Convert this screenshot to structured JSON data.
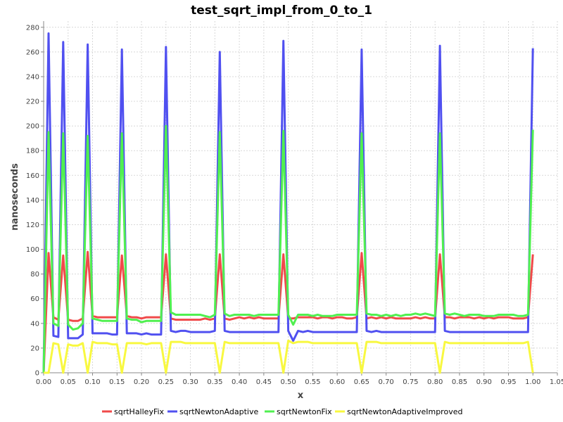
{
  "chart_data": {
    "type": "line",
    "title": "test_sqrt_impl_from_0_to_1",
    "xlabel": "x",
    "ylabel": "nanoseconds",
    "xlim": [
      0,
      1.05
    ],
    "ylim": [
      0,
      285
    ],
    "xticks": [
      "0.00",
      "0.05",
      "0.10",
      "0.15",
      "0.20",
      "0.25",
      "0.30",
      "0.35",
      "0.40",
      "0.45",
      "0.50",
      "0.55",
      "0.60",
      "0.65",
      "0.70",
      "0.75",
      "0.80",
      "0.85",
      "0.90",
      "0.95",
      "1.00",
      "1.05"
    ],
    "yticks": [
      "0",
      "20",
      "40",
      "60",
      "80",
      "100",
      "120",
      "140",
      "160",
      "180",
      "200",
      "220",
      "240",
      "260",
      "280"
    ],
    "grid": true,
    "legend_position": "bottom",
    "x": [
      0.0,
      0.01,
      0.02,
      0.03,
      0.04,
      0.05,
      0.06,
      0.07,
      0.08,
      0.09,
      0.1,
      0.11,
      0.12,
      0.13,
      0.14,
      0.15,
      0.16,
      0.17,
      0.18,
      0.19,
      0.2,
      0.21,
      0.22,
      0.23,
      0.24,
      0.25,
      0.26,
      0.27,
      0.28,
      0.29,
      0.3,
      0.31,
      0.32,
      0.33,
      0.34,
      0.35,
      0.36,
      0.37,
      0.38,
      0.39,
      0.4,
      0.41,
      0.42,
      0.43,
      0.44,
      0.45,
      0.46,
      0.47,
      0.48,
      0.49,
      0.5,
      0.51,
      0.52,
      0.53,
      0.54,
      0.55,
      0.56,
      0.57,
      0.58,
      0.59,
      0.6,
      0.61,
      0.62,
      0.63,
      0.64,
      0.65,
      0.66,
      0.67,
      0.68,
      0.69,
      0.7,
      0.71,
      0.72,
      0.73,
      0.74,
      0.75,
      0.76,
      0.77,
      0.78,
      0.79,
      0.8,
      0.81,
      0.82,
      0.83,
      0.84,
      0.85,
      0.86,
      0.87,
      0.88,
      0.89,
      0.9,
      0.91,
      0.92,
      0.93,
      0.94,
      0.95,
      0.96,
      0.97,
      0.98,
      0.99,
      1.0
    ],
    "series": [
      {
        "name": "sqrtHalleyFix",
        "color": "#f04a4a",
        "values": [
          0,
          97,
          45,
          43,
          95,
          43,
          42,
          42,
          44,
          98,
          46,
          45,
          45,
          45,
          45,
          45,
          95,
          46,
          45,
          45,
          44,
          45,
          45,
          45,
          45,
          96,
          44,
          43,
          43,
          43,
          43,
          43,
          43,
          44,
          43,
          44,
          96,
          44,
          43,
          44,
          45,
          44,
          45,
          44,
          45,
          44,
          44,
          44,
          44,
          96,
          44,
          44,
          45,
          45,
          45,
          45,
          44,
          45,
          45,
          44,
          45,
          45,
          44,
          44,
          45,
          97,
          44,
          45,
          44,
          45,
          44,
          45,
          44,
          44,
          44,
          44,
          45,
          44,
          45,
          44,
          44,
          96,
          45,
          45,
          44,
          45,
          45,
          45,
          44,
          45,
          44,
          45,
          44,
          45,
          45,
          45,
          44,
          44,
          44,
          45,
          96
        ]
      },
      {
        "name": "sqrtNewtonAdaptive",
        "color": "#5050f0",
        "values": [
          0,
          275,
          30,
          29,
          268,
          28,
          28,
          28,
          31,
          266,
          32,
          32,
          32,
          32,
          31,
          31,
          262,
          32,
          32,
          32,
          31,
          32,
          31,
          31,
          31,
          264,
          34,
          33,
          34,
          34,
          33,
          33,
          33,
          33,
          33,
          34,
          260,
          34,
          33,
          33,
          33,
          33,
          33,
          33,
          33,
          33,
          33,
          33,
          33,
          269,
          34,
          26,
          34,
          33,
          34,
          33,
          33,
          33,
          33,
          33,
          33,
          33,
          33,
          33,
          33,
          262,
          34,
          33,
          34,
          33,
          33,
          33,
          33,
          33,
          33,
          33,
          33,
          33,
          33,
          33,
          33,
          265,
          34,
          33,
          33,
          33,
          33,
          33,
          33,
          33,
          33,
          33,
          33,
          33,
          33,
          33,
          33,
          33,
          33,
          33,
          263
        ]
      },
      {
        "name": "sqrtNewtonFix",
        "color": "#50f050",
        "values": [
          0,
          195,
          40,
          38,
          194,
          39,
          35,
          36,
          40,
          192,
          44,
          43,
          42,
          42,
          42,
          42,
          194,
          44,
          43,
          43,
          41,
          42,
          42,
          42,
          42,
          200,
          49,
          47,
          47,
          47,
          47,
          47,
          47,
          46,
          45,
          47,
          195,
          48,
          46,
          47,
          47,
          47,
          47,
          46,
          47,
          47,
          47,
          47,
          47,
          196,
          47,
          39,
          47,
          47,
          47,
          46,
          47,
          46,
          46,
          46,
          47,
          47,
          47,
          47,
          47,
          194,
          48,
          47,
          47,
          46,
          47,
          46,
          47,
          46,
          47,
          47,
          48,
          47,
          48,
          47,
          46,
          194,
          48,
          47,
          48,
          47,
          46,
          47,
          47,
          47,
          46,
          46,
          46,
          47,
          47,
          47,
          47,
          46,
          46,
          47,
          197
        ]
      },
      {
        "name": "sqrtNewtonAdaptiveImproved",
        "color": "#f8f840",
        "values": [
          0,
          0,
          24,
          23,
          0,
          23,
          22,
          22,
          24,
          0,
          25,
          24,
          24,
          24,
          23,
          23,
          0,
          24,
          24,
          24,
          24,
          23,
          24,
          24,
          24,
          0,
          25,
          25,
          25,
          24,
          24,
          24,
          24,
          24,
          24,
          24,
          0,
          25,
          24,
          24,
          24,
          24,
          24,
          24,
          24,
          24,
          24,
          24,
          24,
          0,
          26,
          24,
          25,
          25,
          25,
          24,
          24,
          24,
          24,
          24,
          24,
          24,
          24,
          24,
          24,
          0,
          25,
          25,
          25,
          24,
          24,
          24,
          24,
          24,
          24,
          24,
          24,
          24,
          24,
          24,
          24,
          0,
          25,
          24,
          24,
          24,
          24,
          24,
          24,
          24,
          24,
          24,
          24,
          24,
          24,
          24,
          24,
          24,
          24,
          25,
          0
        ]
      }
    ]
  }
}
